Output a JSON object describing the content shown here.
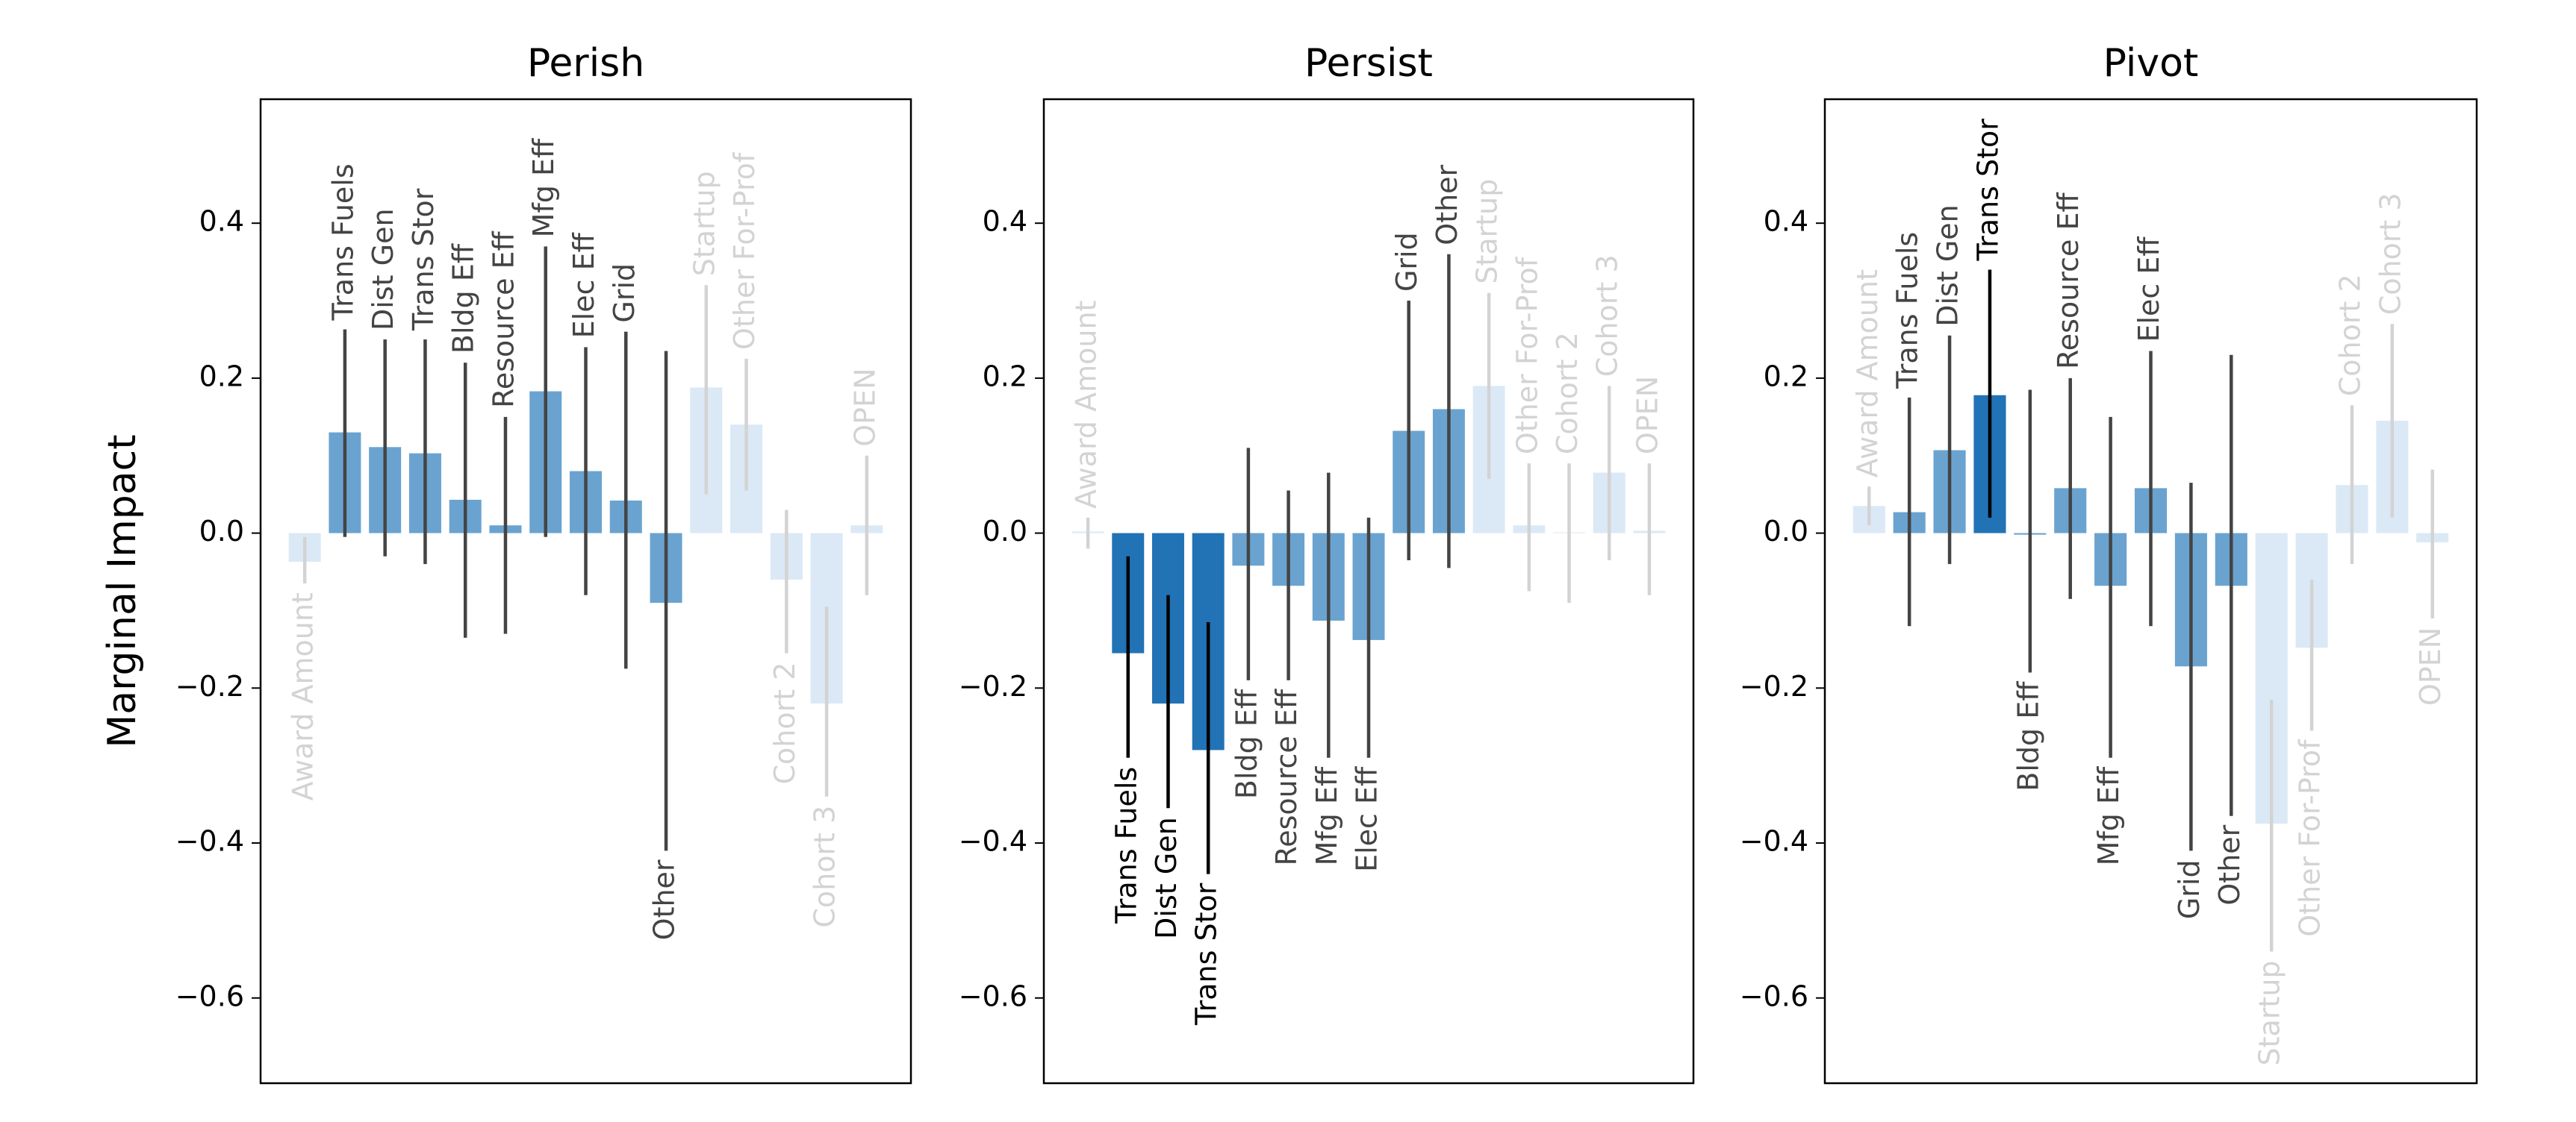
{
  "chart_data": [
    {
      "type": "bar",
      "title": "Perish",
      "ylabel": "Marginal Impact",
      "categories": [
        "Award Amount",
        "Trans Fuels",
        "Dist Gen",
        "Trans Stor",
        "Bldg Eff",
        "Resource Eff",
        "Mfg Eff",
        "Elec Eff",
        "Grid",
        "Other",
        "Startup",
        "Other For-Prof",
        "Cohort 2",
        "Cohort 3",
        "OPEN"
      ],
      "values": [
        -0.037,
        0.13,
        0.111,
        0.103,
        0.043,
        0.01,
        0.183,
        0.08,
        0.042,
        -0.09,
        0.188,
        0.14,
        -0.06,
        -0.22,
        0.01
      ],
      "ci_low": [
        -0.065,
        -0.005,
        -0.03,
        -0.04,
        -0.135,
        -0.13,
        -0.005,
        -0.08,
        -0.175,
        -0.41,
        0.05,
        0.055,
        -0.155,
        -0.34,
        -0.08
      ],
      "ci_high": [
        -0.005,
        0.263,
        0.25,
        0.25,
        0.22,
        0.15,
        0.37,
        0.24,
        0.26,
        0.235,
        0.32,
        0.225,
        0.03,
        -0.095,
        0.1
      ],
      "colors": [
        "#dbe9f6",
        "#6aa3d0",
        "#6aa3d0",
        "#6aa3d0",
        "#6aa3d0",
        "#6aa3d0",
        "#6aa3d0",
        "#6aa3d0",
        "#6aa3d0",
        "#6aa3d0",
        "#dbe9f6",
        "#dbe9f6",
        "#dbe9f6",
        "#dbe9f6",
        "#dbe9f6"
      ],
      "label_colors": [
        "#d3d3d3",
        "#444444",
        "#444444",
        "#444444",
        "#444444",
        "#444444",
        "#444444",
        "#444444",
        "#444444",
        "#444444",
        "#d3d3d3",
        "#d3d3d3",
        "#d3d3d3",
        "#d3d3d3",
        "#d3d3d3"
      ],
      "ylim": [
        -0.71,
        0.56
      ],
      "yticks": [
        {
          "value": -0.6,
          "label": "−0.6"
        },
        {
          "value": -0.4,
          "label": "−0.4"
        },
        {
          "value": -0.2,
          "label": "−0.2"
        },
        {
          "value": 0,
          "label": "0.0"
        },
        0.2,
        0.4
      ]
    },
    {
      "type": "bar",
      "title": "Persist",
      "categories": [
        "Award Amount",
        "Trans Fuels",
        "Dist Gen",
        "Trans Stor",
        "Bldg Eff",
        "Resource Eff",
        "Mfg Eff",
        "Elec Eff",
        "Grid",
        "Other",
        "Startup",
        "Other For-Prof",
        "Cohort 2",
        "Cohort 3",
        "OPEN"
      ],
      "values": [
        0.002,
        -0.155,
        -0.22,
        -0.28,
        -0.042,
        -0.068,
        -0.113,
        -0.138,
        0.132,
        0.16,
        0.19,
        0.01,
        0.001,
        0.078,
        0.003
      ],
      "ci_low": [
        -0.02,
        -0.29,
        -0.355,
        -0.44,
        -0.19,
        -0.19,
        -0.29,
        -0.29,
        -0.035,
        -0.045,
        0.07,
        -0.075,
        -0.09,
        -0.035,
        -0.08
      ],
      "ci_high": [
        0.02,
        -0.03,
        -0.08,
        -0.115,
        0.11,
        0.055,
        0.078,
        0.02,
        0.3,
        0.36,
        0.31,
        0.09,
        0.09,
        0.19,
        0.09
      ],
      "colors": [
        "#dbe9f6",
        "#2272b6",
        "#2272b6",
        "#2272b6",
        "#6aa3d0",
        "#6aa3d0",
        "#6aa3d0",
        "#6aa3d0",
        "#6aa3d0",
        "#6aa3d0",
        "#dbe9f6",
        "#dbe9f6",
        "#dbe9f6",
        "#dbe9f6",
        "#dbe9f6"
      ],
      "label_colors": [
        "#d3d3d3",
        "#000000",
        "#000000",
        "#000000",
        "#444444",
        "#444444",
        "#444444",
        "#444444",
        "#444444",
        "#444444",
        "#d3d3d3",
        "#d3d3d3",
        "#d3d3d3",
        "#d3d3d3",
        "#d3d3d3"
      ],
      "ylim": [
        -0.71,
        0.56
      ],
      "yticks": [
        {
          "value": -0.6,
          "label": "−0.6"
        },
        {
          "value": -0.4,
          "label": "−0.4"
        },
        {
          "value": -0.2,
          "label": "−0.2"
        },
        {
          "value": 0,
          "label": "0.0"
        },
        0.2,
        0.4
      ]
    },
    {
      "type": "bar",
      "title": "Pivot",
      "categories": [
        "Award Amount",
        "Trans Fuels",
        "Dist Gen",
        "Trans Stor",
        "Bldg Eff",
        "Resource Eff",
        "Mfg Eff",
        "Elec Eff",
        "Grid",
        "Other",
        "Startup",
        "Other For-Prof",
        "Cohort 2",
        "Cohort 3",
        "OPEN"
      ],
      "values": [
        0.035,
        0.027,
        0.107,
        0.178,
        -0.002,
        0.058,
        -0.068,
        0.058,
        -0.172,
        -0.068,
        -0.375,
        -0.148,
        0.062,
        0.145,
        -0.012
      ],
      "ci_low": [
        0.01,
        -0.12,
        -0.04,
        0.02,
        -0.18,
        -0.085,
        -0.29,
        -0.12,
        -0.41,
        -0.365,
        -0.54,
        -0.255,
        -0.04,
        0.02,
        -0.11
      ],
      "ci_high": [
        0.06,
        0.175,
        0.255,
        0.34,
        0.185,
        0.2,
        0.15,
        0.235,
        0.065,
        0.23,
        -0.215,
        -0.06,
        0.165,
        0.27,
        0.082
      ],
      "colors": [
        "#dbe9f6",
        "#6aa3d0",
        "#6aa3d0",
        "#2272b6",
        "#6aa3d0",
        "#6aa3d0",
        "#6aa3d0",
        "#6aa3d0",
        "#6aa3d0",
        "#6aa3d0",
        "#dbe9f6",
        "#dbe9f6",
        "#dbe9f6",
        "#dbe9f6",
        "#dbe9f6"
      ],
      "label_colors": [
        "#d3d3d3",
        "#444444",
        "#444444",
        "#000000",
        "#444444",
        "#444444",
        "#444444",
        "#444444",
        "#444444",
        "#444444",
        "#d3d3d3",
        "#d3d3d3",
        "#d3d3d3",
        "#d3d3d3",
        "#d3d3d3"
      ],
      "ylim": [
        -0.71,
        0.56
      ],
      "yticks": [
        {
          "value": -0.6,
          "label": "−0.6"
        },
        {
          "value": -0.4,
          "label": "−0.4"
        },
        {
          "value": -0.2,
          "label": "−0.2"
        },
        {
          "value": 0,
          "label": "0.0"
        },
        0.2,
        0.4
      ]
    }
  ]
}
